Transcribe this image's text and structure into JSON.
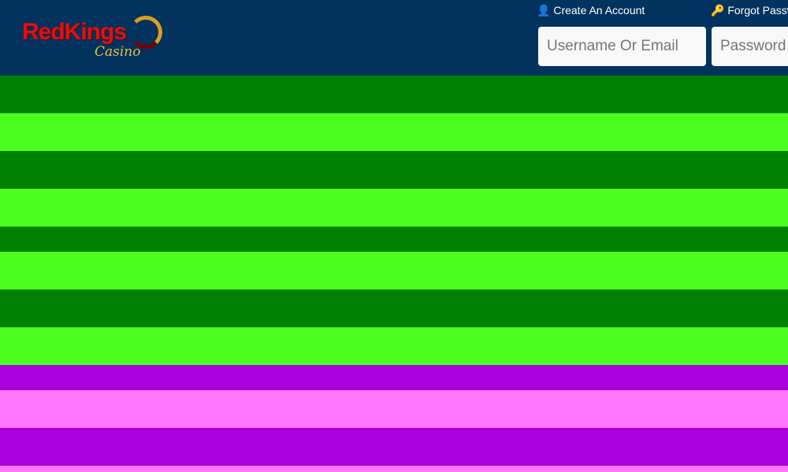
{
  "header": {
    "logo_text": "RedKings",
    "logo_sub": "Casino",
    "create_account": "Create An Account",
    "forgot_password": "Forgot Password",
    "username_placeholder": "Username Or Email",
    "password_placeholder": "Password"
  },
  "colors": {
    "header": "#02325e",
    "green_dark": "#008000",
    "green_light": "#4dff1f",
    "purple": "#aa00dd",
    "pink": "#ff77ff"
  }
}
